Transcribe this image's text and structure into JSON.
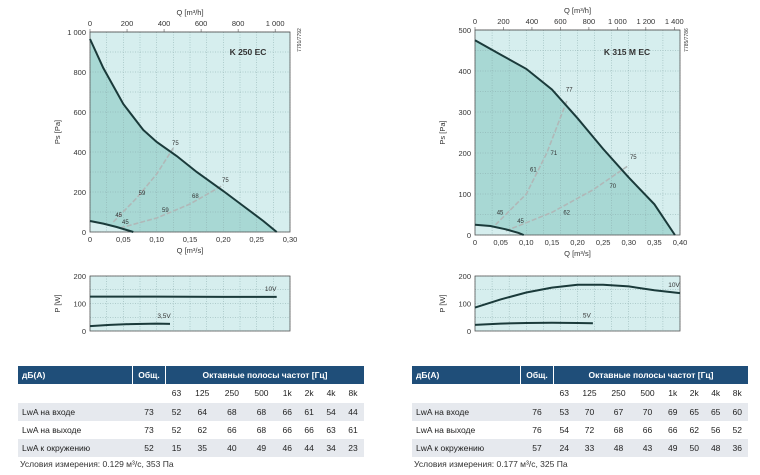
{
  "colors": {
    "region_light": "#d6eeee",
    "region_dark": "#a8d8d4",
    "grid": "#8aa",
    "curve": "#1a3a3a",
    "eff_curve": "#b0b8b8",
    "table_header": "#1f4e79",
    "table_alt": "#e6e9ee"
  },
  "chart_data": [
    {
      "type": "line",
      "title": "K 250 EC",
      "side_code": "7791/7792",
      "xlabel": "Q [m³/s]",
      "xlabel_top": "Q [m³/h]",
      "ylabel": "Ps [Pa]",
      "xlim": [
        0,
        0.3
      ],
      "ylim": [
        0,
        1000
      ],
      "x_ticks": [
        "0",
        "0,05",
        "0,10",
        "0,15",
        "0,20",
        "0,25",
        "0,30"
      ],
      "x_tick_values": [
        0,
        0.05,
        0.1,
        0.15,
        0.2,
        0.25,
        0.3
      ],
      "top_ticks": [
        "0",
        "200",
        "400",
        "600",
        "800",
        "1 000"
      ],
      "top_tick_values": [
        0,
        200,
        400,
        600,
        800,
        1000
      ],
      "top_max": 1080,
      "y_ticks": [
        "0",
        "200",
        "400",
        "600",
        "800",
        "1 000"
      ],
      "y_tick_values": [
        0,
        200,
        400,
        600,
        800,
        1000
      ],
      "max_curve": [
        [
          0,
          965
        ],
        [
          0.02,
          820
        ],
        [
          0.05,
          640
        ],
        [
          0.08,
          510
        ],
        [
          0.1,
          450
        ],
        [
          0.13,
          380
        ],
        [
          0.16,
          300
        ],
        [
          0.2,
          205
        ],
        [
          0.23,
          130
        ],
        [
          0.26,
          55
        ],
        [
          0.28,
          0
        ]
      ],
      "min_curve": [
        [
          0,
          55
        ],
        [
          0.02,
          42
        ],
        [
          0.04,
          25
        ],
        [
          0.055,
          10
        ],
        [
          0.065,
          0
        ]
      ],
      "eff_lines": [
        {
          "points": [
            [
              0.035,
              50
            ],
            [
              0.07,
              170
            ],
            [
              0.1,
              290
            ],
            [
              0.125,
              420
            ]
          ],
          "labels": [
            {
              "text": "45",
              "at": [
                0.04,
                65
              ]
            },
            {
              "text": "59",
              "at": [
                0.075,
                175
              ]
            },
            {
              "text": "75",
              "at": [
                0.125,
                425
              ]
            }
          ]
        },
        {
          "points": [
            [
              0.045,
              20
            ],
            [
              0.1,
              70
            ],
            [
              0.15,
              140
            ],
            [
              0.2,
              235
            ]
          ],
          "labels": [
            {
              "text": "45",
              "at": [
                0.05,
                30
              ]
            },
            {
              "text": "59",
              "at": [
                0.11,
                90
              ]
            },
            {
              "text": "68",
              "at": [
                0.155,
                160
              ]
            },
            {
              "text": "75",
              "at": [
                0.2,
                240
              ]
            }
          ]
        }
      ]
    },
    {
      "type": "line",
      "title": "P [W]",
      "xlim": [
        0,
        0.3
      ],
      "ylim": [
        0,
        200
      ],
      "y_ticks": [
        "0",
        "100",
        "200"
      ],
      "y_tick_values": [
        0,
        100,
        200
      ],
      "ylabel": "P [W]",
      "series": [
        {
          "name": "10V",
          "values": [
            [
              0,
              125
            ],
            [
              0.1,
              125
            ],
            [
              0.2,
              124
            ],
            [
              0.28,
              124
            ]
          ]
        },
        {
          "name": "3,5V",
          "values": [
            [
              0,
              18
            ],
            [
              0.03,
              22
            ],
            [
              0.06,
              25
            ],
            [
              0.1,
              27
            ],
            [
              0.12,
              26
            ]
          ]
        }
      ]
    },
    {
      "type": "line",
      "title": "K 315 M EC",
      "side_code": "7785/7786",
      "xlabel": "Q [m³/s]",
      "xlabel_top": "Q [m³/h]",
      "ylabel": "Ps [Pa]",
      "xlim": [
        0,
        0.4
      ],
      "ylim": [
        0,
        500
      ],
      "x_ticks": [
        "0",
        "0,05",
        "0,10",
        "0,15",
        "0,20",
        "0,25",
        "0,30",
        "0,35",
        "0,40"
      ],
      "x_tick_values": [
        0,
        0.05,
        0.1,
        0.15,
        0.2,
        0.25,
        0.3,
        0.35,
        0.4
      ],
      "top_ticks": [
        "0",
        "200",
        "400",
        "600",
        "800",
        "1 000",
        "1 200",
        "1 400"
      ],
      "top_tick_values": [
        0,
        200,
        400,
        600,
        800,
        1000,
        1200,
        1400
      ],
      "top_max": 1440,
      "y_ticks": [
        "0",
        "100",
        "200",
        "300",
        "400",
        "500"
      ],
      "y_tick_values": [
        0,
        100,
        200,
        300,
        400,
        500
      ],
      "max_curve": [
        [
          0,
          475
        ],
        [
          0.05,
          440
        ],
        [
          0.1,
          405
        ],
        [
          0.15,
          355
        ],
        [
          0.2,
          285
        ],
        [
          0.25,
          210
        ],
        [
          0.3,
          140
        ],
        [
          0.35,
          75
        ],
        [
          0.39,
          0
        ]
      ],
      "min_curve": [
        [
          0,
          25
        ],
        [
          0.03,
          22
        ],
        [
          0.06,
          14
        ],
        [
          0.085,
          5
        ],
        [
          0.095,
          0
        ]
      ],
      "eff_lines": [
        {
          "points": [
            [
              0.04,
              25
            ],
            [
              0.1,
              100
            ],
            [
              0.14,
              200
            ],
            [
              0.18,
              330
            ]
          ],
          "labels": [
            {
              "text": "45",
              "at": [
                0.045,
                45
              ]
            },
            {
              "text": "61",
              "at": [
                0.11,
                150
              ]
            },
            {
              "text": "71",
              "at": [
                0.15,
                190
              ]
            },
            {
              "text": "77",
              "at": [
                0.18,
                345
              ]
            }
          ]
        },
        {
          "points": [
            [
              0.06,
              10
            ],
            [
              0.15,
              55
            ],
            [
              0.23,
              110
            ],
            [
              0.3,
              170
            ]
          ],
          "labels": [
            {
              "text": "45",
              "at": [
                0.085,
                25
              ]
            },
            {
              "text": "62",
              "at": [
                0.175,
                45
              ]
            },
            {
              "text": "70",
              "at": [
                0.265,
                110
              ]
            },
            {
              "text": "75",
              "at": [
                0.305,
                180
              ]
            }
          ]
        }
      ]
    },
    {
      "type": "line",
      "title": "P [W]",
      "xlim": [
        0,
        0.4
      ],
      "ylim": [
        0,
        200
      ],
      "y_ticks": [
        "0",
        "100",
        "200"
      ],
      "y_tick_values": [
        0,
        100,
        200
      ],
      "ylabel": "P [W]",
      "series": [
        {
          "name": "10V",
          "values": [
            [
              0,
              85
            ],
            [
              0.05,
              115
            ],
            [
              0.1,
              140
            ],
            [
              0.15,
              158
            ],
            [
              0.2,
              168
            ],
            [
              0.25,
              168
            ],
            [
              0.3,
              162
            ],
            [
              0.35,
              148
            ],
            [
              0.4,
              138
            ]
          ]
        },
        {
          "name": "5V",
          "values": [
            [
              0,
              22
            ],
            [
              0.05,
              27
            ],
            [
              0.1,
              29
            ],
            [
              0.15,
              30
            ],
            [
              0.2,
              29
            ],
            [
              0.23,
              28
            ]
          ]
        }
      ]
    }
  ],
  "tables": [
    {
      "header": {
        "label": "дБ(A)",
        "total": "Общ.",
        "bands_title": "Октавные полосы частот [Гц]"
      },
      "freqs": [
        "63",
        "125",
        "250",
        "500",
        "1k",
        "2k",
        "4k",
        "8k"
      ],
      "rows": [
        {
          "label": "LwA на входе",
          "total": "73",
          "values": [
            "52",
            "64",
            "68",
            "68",
            "66",
            "61",
            "54",
            "44"
          ]
        },
        {
          "label": "LwA на выходе",
          "total": "73",
          "values": [
            "52",
            "62",
            "66",
            "68",
            "66",
            "66",
            "63",
            "61"
          ]
        },
        {
          "label": "LwA к окружению",
          "total": "52",
          "values": [
            "15",
            "35",
            "40",
            "49",
            "46",
            "44",
            "34",
            "23"
          ]
        }
      ],
      "condition": "Условия измерения: 0.129 м³/с, 353 Па"
    },
    {
      "header": {
        "label": "дБ(A)",
        "total": "Общ.",
        "bands_title": "Октавные полосы частот [Гц]"
      },
      "freqs": [
        "63",
        "125",
        "250",
        "500",
        "1k",
        "2k",
        "4k",
        "8k"
      ],
      "rows": [
        {
          "label": "LwA на входе",
          "total": "76",
          "values": [
            "53",
            "70",
            "67",
            "70",
            "69",
            "65",
            "65",
            "60"
          ]
        },
        {
          "label": "LwA на выходе",
          "total": "76",
          "values": [
            "54",
            "72",
            "68",
            "66",
            "66",
            "62",
            "56",
            "52"
          ]
        },
        {
          "label": "LwA к окружению",
          "total": "57",
          "values": [
            "24",
            "33",
            "48",
            "43",
            "49",
            "50",
            "48",
            "36"
          ]
        }
      ],
      "condition": "Условия измерения: 0.177 м³/с, 325 Па"
    }
  ]
}
